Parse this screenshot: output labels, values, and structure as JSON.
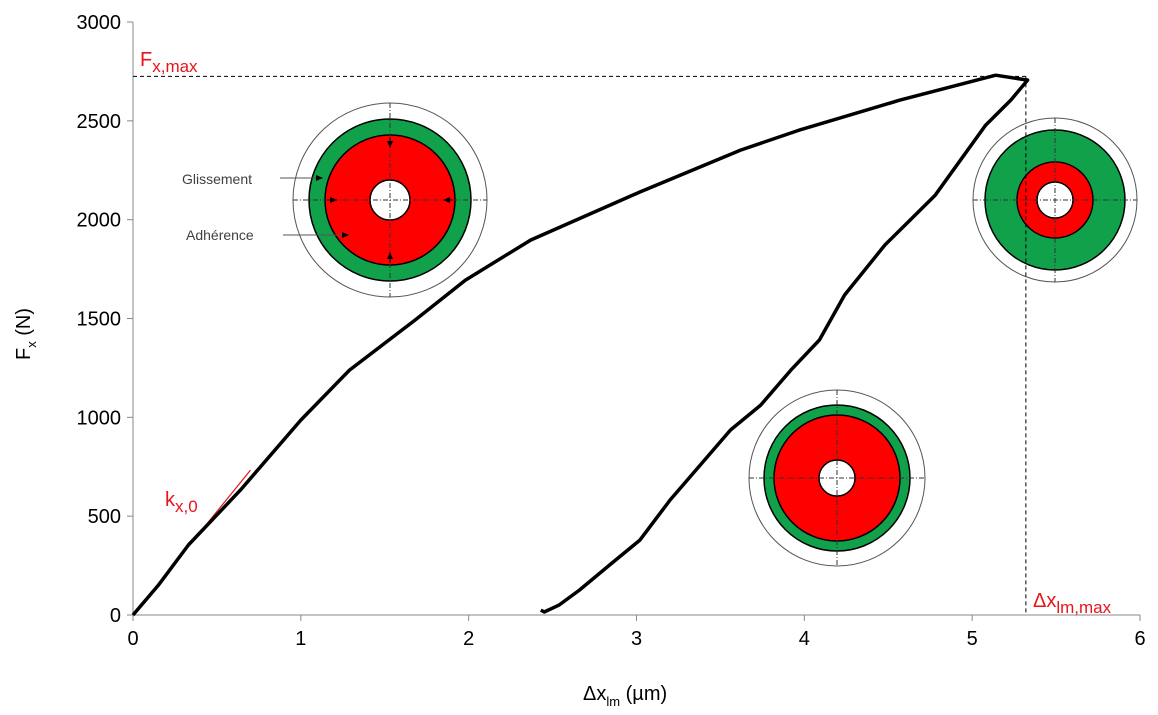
{
  "chart_data": {
    "type": "line",
    "x_label": {
      "main": "Δx",
      "sub": "lm",
      "rest": " (µm)"
    },
    "y_label": {
      "main": "F",
      "sub": "x",
      "rest": " (N)"
    },
    "xlim": [
      0,
      6
    ],
    "xticks": [
      0,
      1,
      2,
      3,
      4,
      5,
      6
    ],
    "ylim": [
      0,
      3000
    ],
    "yticks": [
      0,
      500,
      1000,
      1500,
      2000,
      2500,
      3000
    ],
    "series": [
      {
        "name": "Fx",
        "color": "#000000",
        "x": [
          0,
          0.05,
          0.15,
          0.33,
          0.64,
          1.0,
          1.29,
          1.68,
          1.98,
          2.37,
          3.02,
          3.62,
          3.97,
          4.57,
          5.14,
          5.33,
          5.23,
          5.08,
          4.93,
          4.78,
          4.66,
          4.48,
          4.24,
          4.09,
          3.92,
          3.74,
          3.56,
          3.38,
          3.2,
          3.02,
          2.84,
          2.66,
          2.54,
          2.45,
          2.43
        ],
        "values": [
          0,
          50,
          150,
          354,
          632,
          986,
          1239,
          1492,
          1694,
          1897,
          2140,
          2352,
          2453,
          2605,
          2731,
          2706,
          2605,
          2478,
          2301,
          2124,
          2023,
          1872,
          1619,
          1391,
          1239,
          1062,
          936,
          759,
          582,
          379,
          253,
          126,
          51,
          15,
          25
        ]
      }
    ],
    "tangent": {
      "color": "#e8141c",
      "x": [
        0,
        0.7
      ],
      "values": [
        0,
        733
      ]
    },
    "reference_lines": {
      "y": 2725,
      "x": 5.32
    },
    "annotations": {
      "fmax": {
        "main": "F",
        "sub": "x,max"
      },
      "k0": {
        "main": "k",
        "sub": "x,0"
      },
      "dxmax": {
        "main": "Δx",
        "sub": "lm,max"
      }
    },
    "diagram_labels": {
      "slip": "Glissement",
      "stick": "Adhérence"
    }
  }
}
